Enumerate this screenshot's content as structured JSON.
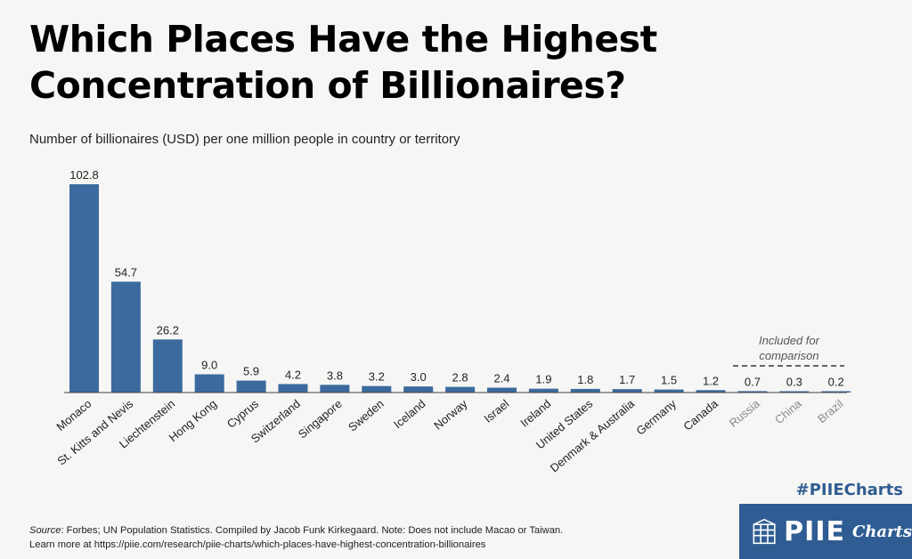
{
  "header": {
    "title": "Which Places Have the Highest Concentration of Billionaires?",
    "subtitle": "Number of billionaires (USD) per one million people in country or territory"
  },
  "comparison_note": "Included for comparison",
  "chart_data": {
    "type": "bar",
    "title": "Which Places Have the Highest Concentration of Billionaires?",
    "subtitle": "Number of billionaires (USD) per one million people in country or territory",
    "categories": [
      "Monaco",
      "St. Kitts and Nevis",
      "Liechtenstein",
      "Hong Kong",
      "Cyprus",
      "Switzerland",
      "Singapore",
      "Sweden",
      "Iceland",
      "Norway",
      "Israel",
      "Ireland",
      "United States",
      "Denmark & Australia",
      "Germany",
      "Canada",
      "Russia",
      "China",
      "Brazil"
    ],
    "values": [
      102.8,
      54.7,
      26.2,
      9.0,
      5.9,
      4.2,
      3.8,
      3.2,
      3.0,
      2.8,
      2.4,
      1.9,
      1.8,
      1.7,
      1.5,
      1.2,
      0.7,
      0.3,
      0.2
    ],
    "value_labels": [
      "102.8",
      "54.7",
      "26.2",
      "9.0",
      "5.9",
      "4.2",
      "3.8",
      "3.2",
      "3.0",
      "2.8",
      "2.4",
      "1.9",
      "1.8",
      "1.7",
      "1.5",
      "1.2",
      "0.7",
      "0.3",
      "0.2"
    ],
    "comparison_categories": [
      "Russia",
      "China",
      "Brazil"
    ],
    "ylim": [
      0,
      102.8
    ],
    "grid": false,
    "bar_color": "#3c6a9e",
    "comparison_label_color": "#8a8a8a"
  },
  "footer": {
    "source_label": "Source",
    "source_text": ": Forbes; UN Population Statistics. Compiled by Jacob Funk Kirkegaard. Note: Does not include Macao or Taiwan.",
    "learn_more": "Learn more at https://piie.com/research/piie-charts/which-places-have-highest-concentration-billionaires"
  },
  "brand": {
    "hashtag": "#PIIECharts",
    "logo_word": "PIIE",
    "logo_sub": "Charts",
    "logo_icon": "building-columns-icon",
    "accent_color": "#2f5d93"
  }
}
